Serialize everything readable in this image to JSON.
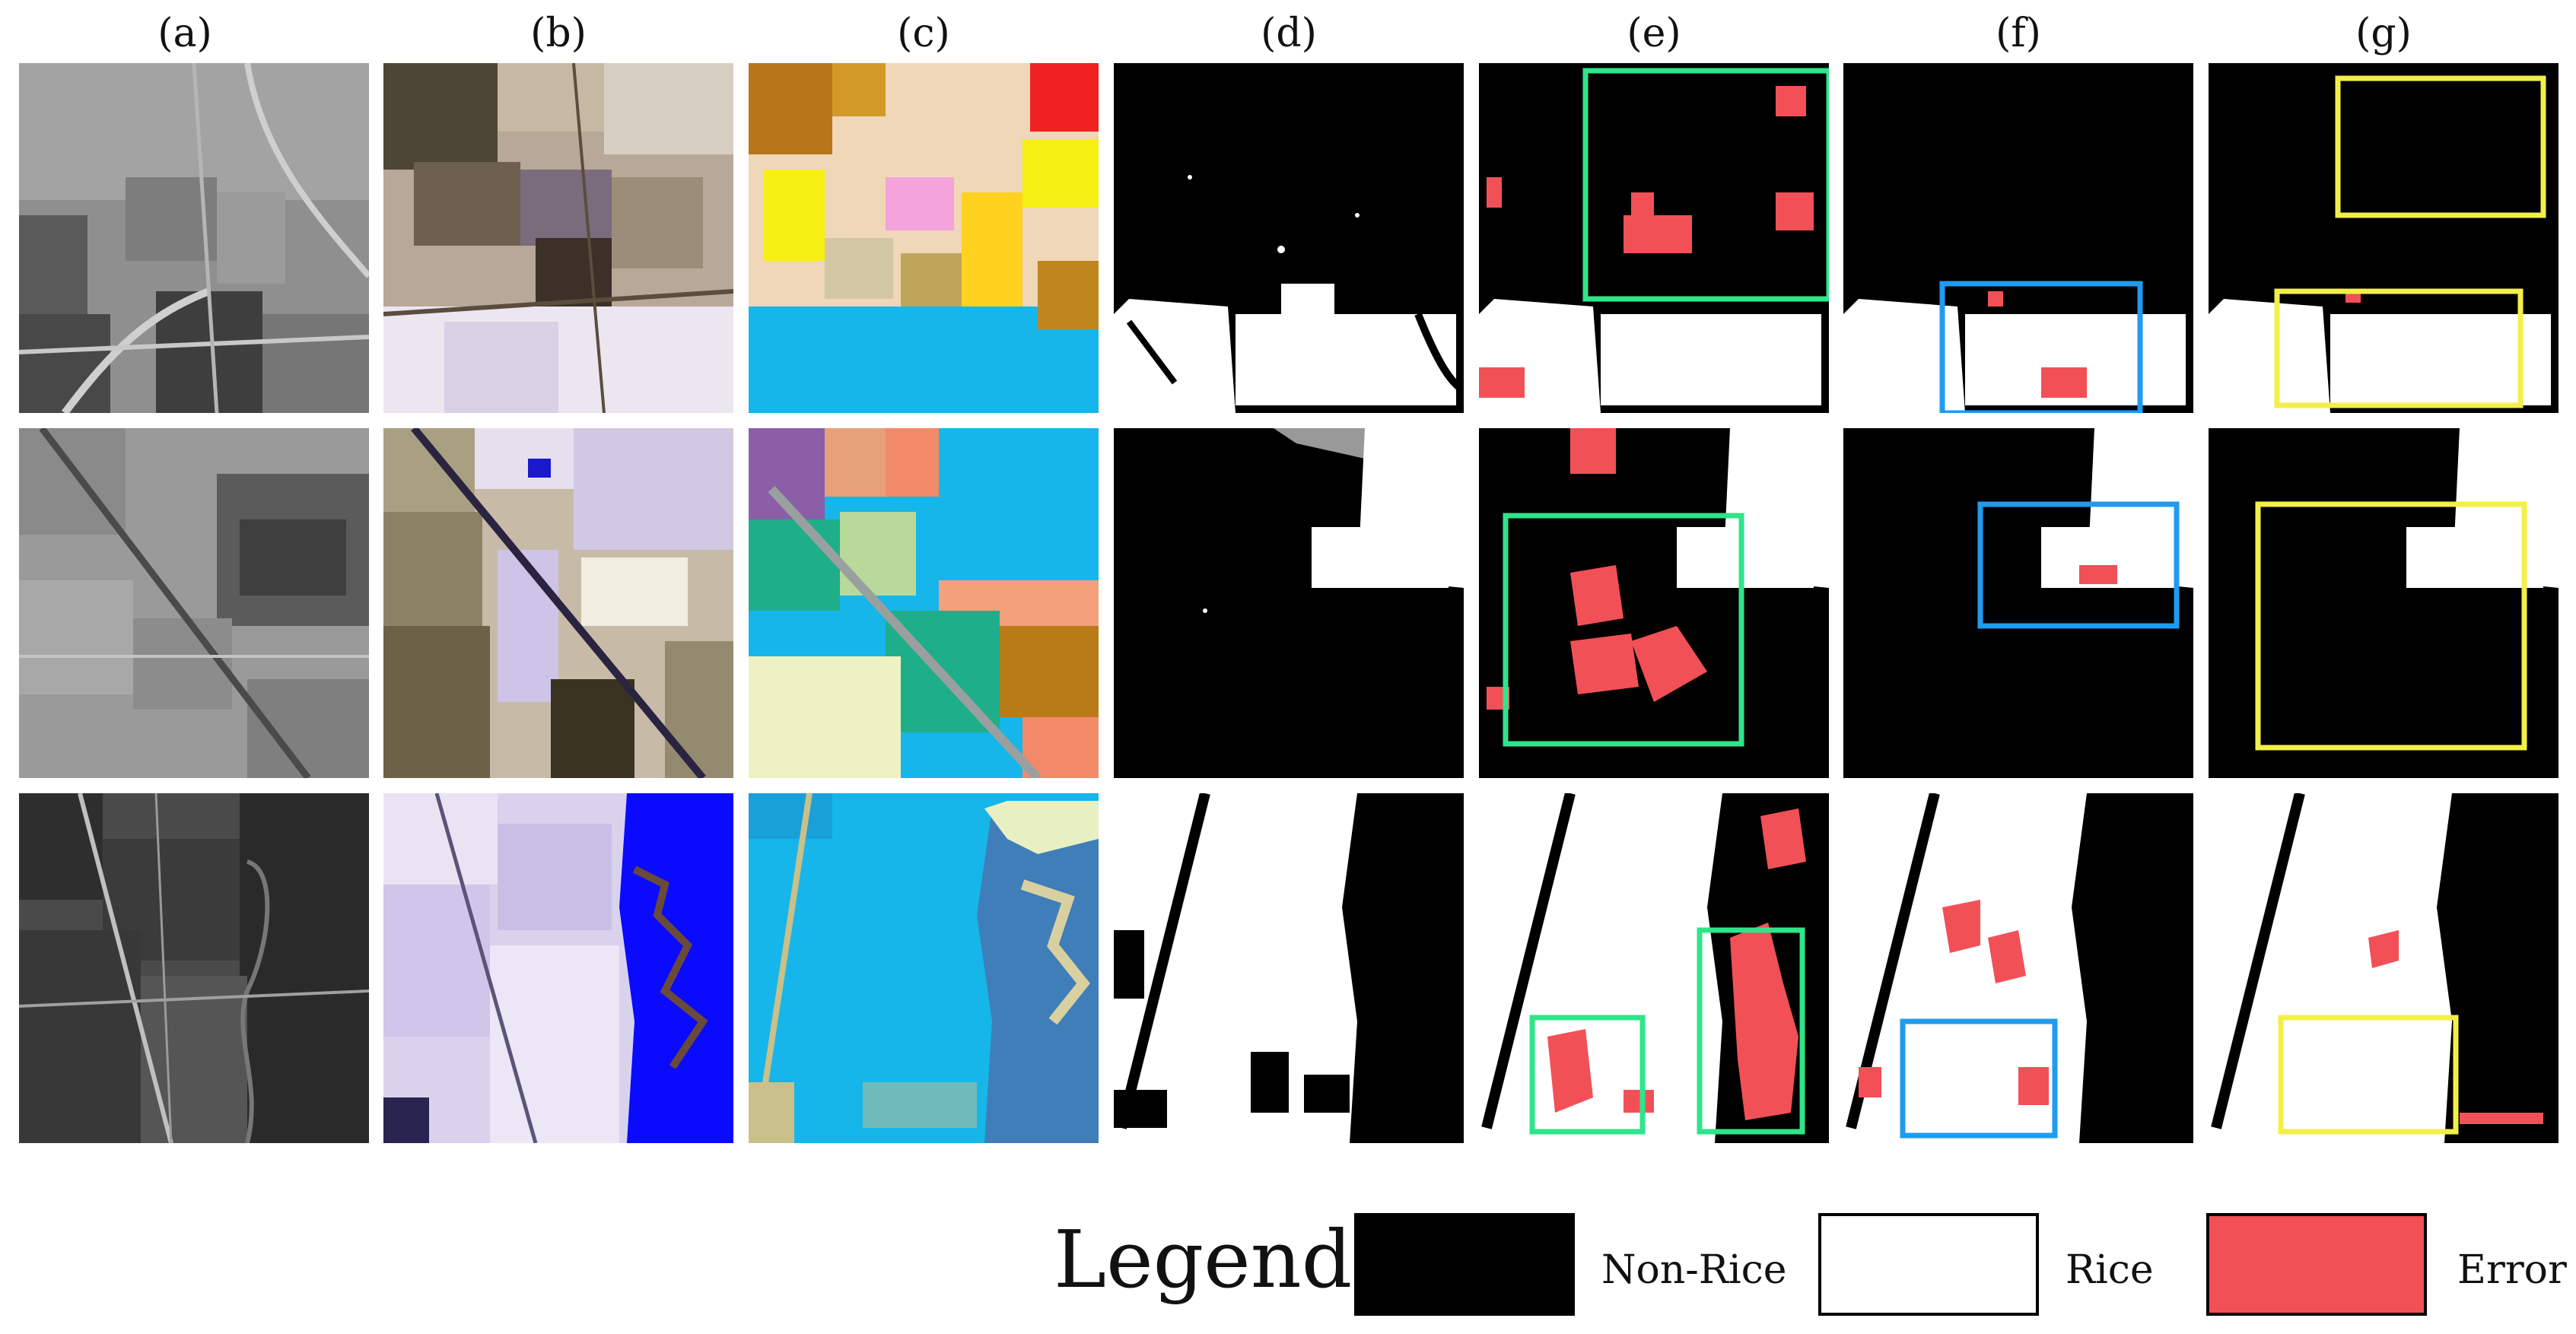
{
  "columns": [
    "(a)",
    "(b)",
    "(c)",
    "(d)",
    "(e)",
    "(f)",
    "(g)"
  ],
  "legend": {
    "title": "Legend:",
    "items": [
      {
        "label": "Non-Rice",
        "color": "#000000"
      },
      {
        "label": "Rice",
        "color": "#ffffff"
      },
      {
        "label": "Error",
        "color": "#f25057"
      }
    ]
  },
  "colors": {
    "error": "#f25057",
    "box_green": "#2ee58a",
    "box_blue": "#1f9bef",
    "box_yellow": "#f3ef4a",
    "water_blue": "#0a0aff",
    "rice_cyan": "#16b6ea"
  }
}
